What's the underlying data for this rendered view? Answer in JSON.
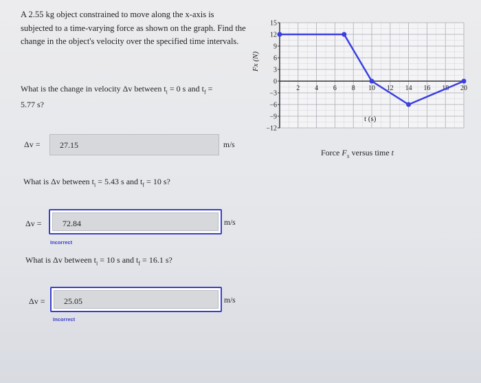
{
  "problem": {
    "intro": "A 2.55 kg object constrained to move along the x-axis is subjected to a time-varying force as shown on the graph. Find the change in the object's velocity over the specified time intervals."
  },
  "questions": [
    {
      "prefix": "What is the change in velocity Δv between t",
      "ti": "i",
      "mid": " = 0 s and t",
      "tf": "f",
      "suffix": " = 5.77 s?",
      "answer_label": "Δv =",
      "value": "27.15",
      "units": "m/s",
      "feedback": ""
    },
    {
      "prefix": "What is Δv between t",
      "ti": "i",
      "mid": " = 5.43 s and t",
      "tf": "f",
      "suffix": " = 10 s?",
      "answer_label": "Δv =",
      "value": "72.84",
      "units": "m/s",
      "feedback": "Incorrect"
    },
    {
      "prefix": "What is Δv between t",
      "ti": "i",
      "mid": " = 10 s and t",
      "tf": "f",
      "suffix": " = 16.1 s?",
      "answer_label": "Δv =",
      "value": "25.05",
      "units": "m/s",
      "feedback": "Incorrect"
    }
  ],
  "colors": {
    "line": "#3a3fe0",
    "feedback": "#3b3fc8"
  },
  "chart_data": {
    "type": "line",
    "title": "",
    "caption": "Force Fx versus time t",
    "caption_parts": {
      "a": "Force ",
      "b": "F",
      "c": "x",
      "d": " versus time ",
      "e": "t"
    },
    "xlabel": "t (s)",
    "ylabel": "Fx (N)",
    "xlim": [
      0,
      20
    ],
    "ylim": [
      -12,
      15
    ],
    "xticks": [
      2,
      4,
      6,
      8,
      10,
      12,
      14,
      16,
      18,
      20
    ],
    "yticks": [
      15,
      12,
      9,
      6,
      3,
      0,
      -3,
      -6,
      -9,
      -12
    ],
    "grid": true,
    "series": [
      {
        "x": [
          0,
          7,
          10,
          14,
          20
        ],
        "y": [
          12,
          12,
          0,
          -6,
          0
        ]
      }
    ]
  }
}
